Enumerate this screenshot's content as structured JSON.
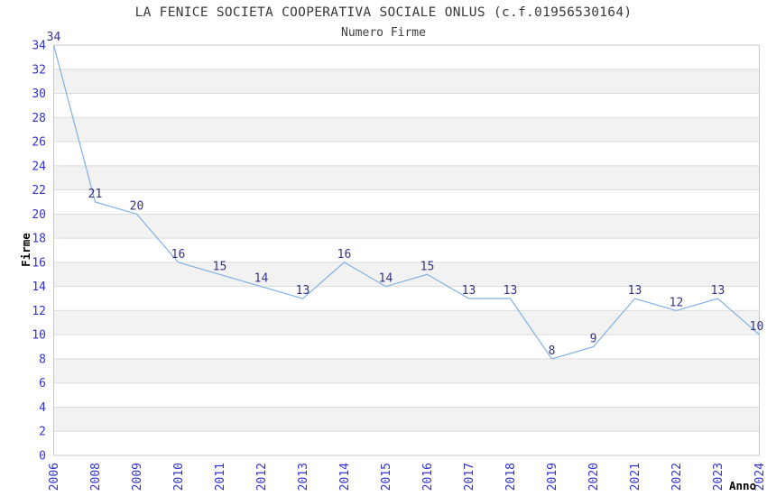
{
  "chart_data": {
    "type": "line",
    "title": "LA FENICE SOCIETA COOPERATIVA SOCIALE ONLUS (c.f.01956530164)",
    "subtitle": "Numero Firme",
    "xlabel": "Anno",
    "ylabel": "Firme",
    "x": [
      "2006",
      "2008",
      "2009",
      "2010",
      "2011",
      "2012",
      "2013",
      "2014",
      "2015",
      "2016",
      "2017",
      "2018",
      "2019",
      "2020",
      "2021",
      "2022",
      "2023",
      "2024"
    ],
    "series": [
      {
        "name": "Numero Firme",
        "values": [
          34,
          21,
          20,
          16,
          15,
          14,
          13,
          16,
          14,
          15,
          13,
          13,
          8,
          9,
          13,
          12,
          13,
          10
        ]
      }
    ],
    "ylim": [
      0,
      34
    ],
    "ytick_step": 2,
    "grid": true,
    "bands_alternating": true,
    "legend": false,
    "point_labels_visible": true,
    "x_labels_rotated_degrees": 90,
    "colors": {
      "line": "#82b0e4",
      "tick_label": "#3333cc",
      "data_label": "#333388",
      "band_gray": "#f2f2f2",
      "gridline": "#dcdcdc",
      "plot_border": "#c9c9c9",
      "title_text": "#383838",
      "axis_title_text": "#000000",
      "background": "#ffffff"
    }
  }
}
